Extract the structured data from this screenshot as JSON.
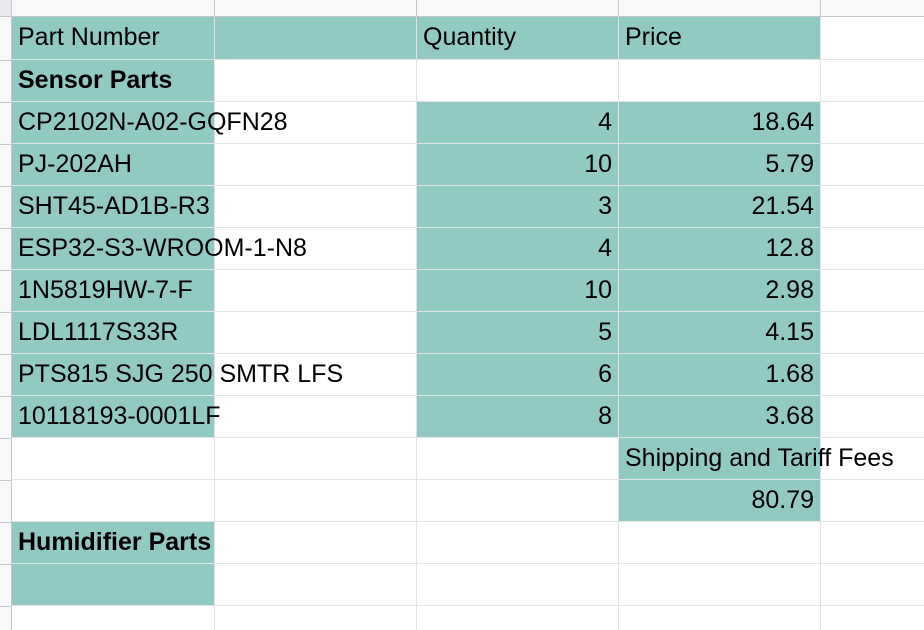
{
  "headers": {
    "part_number": "Part Number",
    "col_b": "",
    "quantity": "Quantity",
    "price": "Price"
  },
  "sections": {
    "sensor": "Sensor Parts",
    "humidifier": "Humidifier Parts"
  },
  "rows": [
    {
      "part": "CP2102N-A02-GQFN28",
      "qty": "4",
      "price": "18.64"
    },
    {
      "part": "PJ-202AH",
      "qty": "10",
      "price": "5.79"
    },
    {
      "part": "SHT45-AD1B-R3",
      "qty": "3",
      "price": "21.54"
    },
    {
      "part": "ESP32-S3-WROOM-1-N8",
      "qty": "4",
      "price": "12.8"
    },
    {
      "part": "1N5819HW-7-F",
      "qty": "10",
      "price": "2.98"
    },
    {
      "part": "LDL1117S33R",
      "qty": "5",
      "price": "4.15"
    },
    {
      "part": "PTS815 SJG 250 SMTR LFS",
      "qty": "6",
      "price": "1.68"
    },
    {
      "part": "10118193-0001LF",
      "qty": "8",
      "price": "3.68"
    }
  ],
  "shipping": {
    "label": "Shipping and Tariff Fees",
    "value": "80.79"
  },
  "colors": {
    "highlight": "#92c9c3",
    "gridline": "#e2e3e3"
  }
}
